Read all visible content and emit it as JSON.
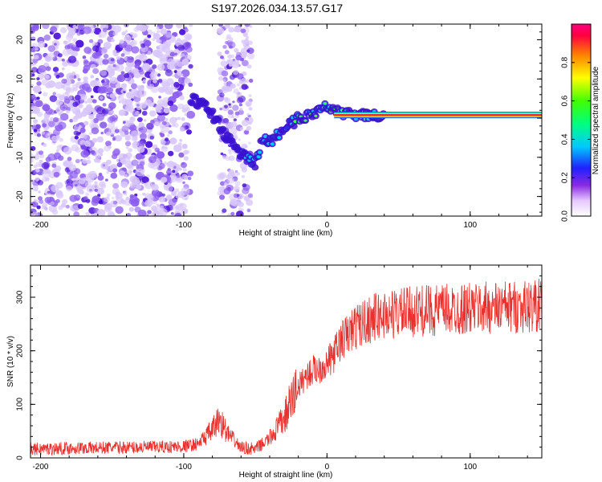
{
  "title": "S197.2026.034.13.57.G17",
  "colors": {
    "snr_line": "#e8302c",
    "trace": "#d42060",
    "scatter_dark": "#4a10d8",
    "scatter_mid": "#8c5cf0",
    "scatter_light": "#d8c6fb"
  },
  "chart_data": [
    {
      "type": "heatmap",
      "title": "",
      "xlabel": "Height of straight line (km)",
      "ylabel": "Frequency (Hz)",
      "xlim": [
        -207,
        150
      ],
      "ylim": [
        -25,
        24
      ],
      "xticks": [
        -200,
        -100,
        0,
        100
      ],
      "yticks": [
        -20,
        -10,
        0,
        10,
        20
      ],
      "grid": false,
      "colorbar": {
        "label": "Normalized spectral amplitude",
        "range": [
          0,
          1
        ],
        "ticks": [
          0.0,
          0.2,
          0.4,
          0.6,
          0.8
        ]
      },
      "ridge": {
        "x": [
          -95,
          -85,
          -78,
          -70,
          -60,
          -50,
          -45,
          -40,
          -30,
          -20,
          -10,
          0,
          5,
          15,
          40,
          85,
          150
        ],
        "y": [
          5,
          3,
          0,
          -5,
          -9,
          -12,
          -5,
          -6,
          -3,
          0,
          1,
          3,
          2,
          1,
          0.8,
          0.8,
          0.8
        ]
      }
    },
    {
      "type": "line",
      "title": "",
      "xlabel": "Height of straight line (km)",
      "ylabel": "SNR (10 * v/v)",
      "xlim": [
        -207,
        150
      ],
      "ylim": [
        0,
        360
      ],
      "xticks": [
        -200,
        -100,
        0,
        100
      ],
      "yticks": [
        0,
        100,
        200,
        300
      ],
      "grid": false,
      "series": [
        {
          "name": "SNR",
          "x": [
            -207,
            -180,
            -150,
            -120,
            -100,
            -90,
            -80,
            -75,
            -70,
            -60,
            -50,
            -40,
            -30,
            -25,
            -20,
            -15,
            -10,
            -5,
            0,
            5,
            10,
            20,
            30,
            40,
            50,
            60,
            70,
            80,
            90,
            100,
            110,
            120,
            130,
            140,
            150
          ],
          "y": [
            15,
            17,
            18,
            19,
            20,
            25,
            50,
            70,
            45,
            18,
            15,
            35,
            70,
            100,
            130,
            150,
            160,
            165,
            172,
            190,
            215,
            240,
            255,
            262,
            265,
            268,
            270,
            272,
            272,
            274,
            275,
            276,
            277,
            278,
            280
          ]
        }
      ]
    }
  ]
}
